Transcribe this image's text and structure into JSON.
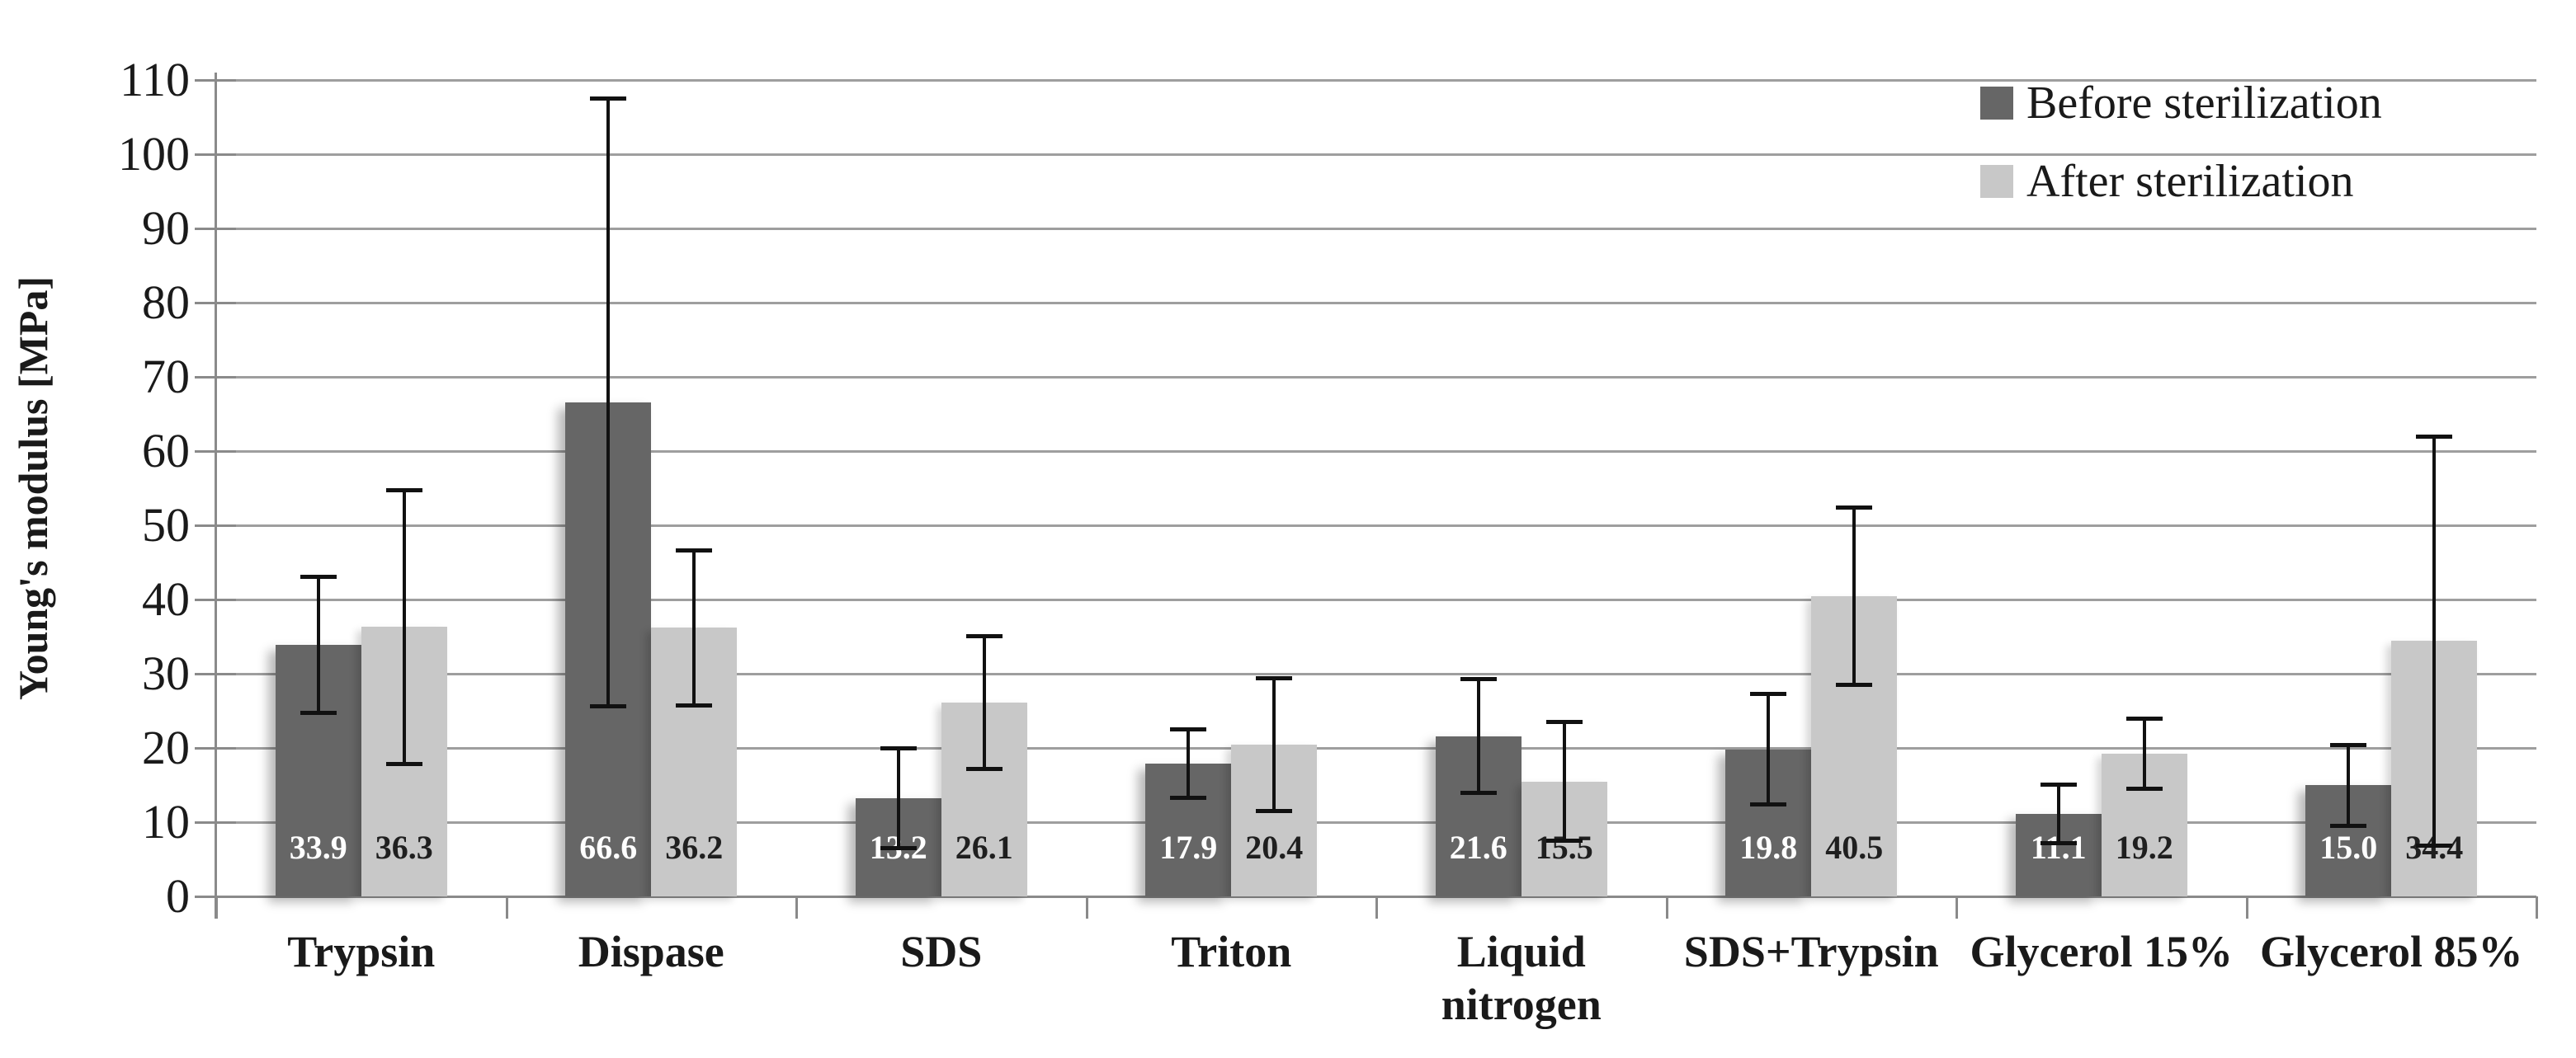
{
  "chart_data": {
    "type": "bar",
    "title": "",
    "ylabel": "Young's modulus [MPa]",
    "xlabel": "",
    "ylim": [
      0,
      110
    ],
    "ytick_step": 10,
    "ytick_labels": [
      "0",
      "10",
      "20",
      "30",
      "40",
      "50",
      "60",
      "70",
      "80",
      "90",
      "100",
      "110"
    ],
    "grid": true,
    "legend_position": "top-right inside plot area",
    "categories": [
      "Trypsin",
      "Dispase",
      "SDS",
      "Triton",
      "Liquid nitrogen",
      "SDS+Trypsin",
      "Glycerol 15%",
      "Glycerol 85%"
    ],
    "series": [
      {
        "name": "Before sterilization",
        "color": "#666666",
        "data_label_color": "#ffffff",
        "values": [
          33.9,
          66.6,
          13.2,
          17.9,
          21.6,
          19.8,
          11.1,
          15.0
        ],
        "labels": [
          "33.9",
          "66.6",
          "13.2",
          "17.9",
          "21.6",
          "19.8",
          "11.1",
          "15.0"
        ],
        "errors": [
          9.2,
          41.0,
          6.8,
          4.7,
          7.7,
          7.5,
          4.0,
          5.5
        ]
      },
      {
        "name": "After sterilization",
        "color": "#c8c8c8",
        "data_label_color": "#1f1f1f",
        "values": [
          36.3,
          36.2,
          26.1,
          20.4,
          15.5,
          40.5,
          19.2,
          34.4
        ],
        "labels": [
          "36.3",
          "36.2",
          "26.1",
          "20.4",
          "15.5",
          "40.5",
          "19.2",
          "34.4"
        ],
        "errors": [
          18.5,
          10.5,
          9.0,
          9.0,
          8.1,
          12.0,
          4.8,
          27.6
        ]
      }
    ],
    "colors": {
      "gridline": "#9e9e9e",
      "axis": "#8a8a8a",
      "error_bar": "#111111",
      "background": "#ffffff",
      "text": "#1a1a1a"
    }
  }
}
